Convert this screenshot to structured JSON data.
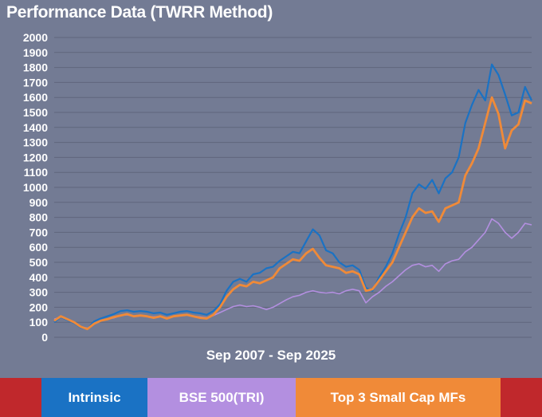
{
  "chart_data": {
    "type": "line",
    "title": "Performance Data (TWRR Method)",
    "xlabel": "Sep 2007 - Sep 2025",
    "ylabel": "",
    "ylim": [
      0,
      2000
    ],
    "yticks": [
      0,
      100,
      200,
      300,
      400,
      500,
      600,
      700,
      800,
      900,
      1000,
      1100,
      1200,
      1300,
      1400,
      1500,
      1600,
      1700,
      1800,
      1900,
      2000
    ],
    "x": [
      2007.75,
      2008.0,
      2008.25,
      2008.5,
      2008.75,
      2009.0,
      2009.25,
      2009.5,
      2009.75,
      2010.0,
      2010.25,
      2010.5,
      2010.75,
      2011.0,
      2011.25,
      2011.5,
      2011.75,
      2012.0,
      2012.25,
      2012.5,
      2012.75,
      2013.0,
      2013.25,
      2013.5,
      2013.75,
      2014.0,
      2014.25,
      2014.5,
      2014.75,
      2015.0,
      2015.25,
      2015.5,
      2015.75,
      2016.0,
      2016.25,
      2016.5,
      2016.75,
      2017.0,
      2017.25,
      2017.5,
      2017.75,
      2018.0,
      2018.25,
      2018.5,
      2018.75,
      2019.0,
      2019.25,
      2019.5,
      2019.75,
      2020.0,
      2020.25,
      2020.5,
      2020.75,
      2021.0,
      2021.25,
      2021.5,
      2021.75,
      2022.0,
      2022.25,
      2022.5,
      2022.75,
      2023.0,
      2023.25,
      2023.5,
      2023.75,
      2024.0,
      2024.25,
      2024.5,
      2024.75,
      2025.0,
      2025.25,
      2025.5,
      2025.75
    ],
    "series": [
      {
        "name": "Intrinsic",
        "color": "#1a72c4",
        "values": [
          100,
          135,
          115,
          95,
          65,
          55,
          105,
          125,
          140,
          155,
          175,
          180,
          170,
          175,
          170,
          160,
          165,
          150,
          160,
          170,
          175,
          165,
          160,
          150,
          175,
          220,
          310,
          370,
          390,
          370,
          420,
          430,
          460,
          470,
          510,
          540,
          570,
          560,
          640,
          720,
          680,
          580,
          560,
          500,
          470,
          480,
          450,
          330,
          310,
          400,
          470,
          560,
          690,
          800,
          960,
          1020,
          990,
          1050,
          960,
          1060,
          1100,
          1200,
          1430,
          1550,
          1650,
          1580,
          1820,
          1750,
          1620,
          1480,
          1500,
          1670,
          1580
        ]
      },
      {
        "name": "BSE 500(TRI)",
        "color": "#b38fe0",
        "values": [
          120,
          135,
          115,
          100,
          70,
          60,
          95,
          110,
          120,
          130,
          145,
          150,
          140,
          145,
          140,
          135,
          140,
          130,
          140,
          145,
          150,
          140,
          135,
          130,
          145,
          165,
          185,
          205,
          215,
          205,
          210,
          200,
          185,
          200,
          225,
          250,
          270,
          280,
          300,
          310,
          300,
          295,
          300,
          290,
          310,
          320,
          310,
          230,
          270,
          300,
          340,
          370,
          410,
          450,
          480,
          490,
          470,
          480,
          440,
          490,
          510,
          520,
          570,
          600,
          650,
          700,
          790,
          760,
          700,
          660,
          700,
          760,
          750
        ]
      },
      {
        "name": "Top 3 Small Cap MFs",
        "color": "#f08a38",
        "values": [
          110,
          140,
          120,
          100,
          70,
          55,
          90,
          110,
          120,
          135,
          145,
          155,
          140,
          145,
          140,
          130,
          140,
          125,
          140,
          145,
          150,
          140,
          130,
          125,
          150,
          200,
          270,
          320,
          350,
          340,
          370,
          360,
          380,
          400,
          460,
          490,
          520,
          510,
          560,
          590,
          530,
          480,
          470,
          460,
          430,
          440,
          420,
          310,
          320,
          380,
          440,
          500,
          600,
          700,
          800,
          860,
          830,
          840,
          770,
          860,
          880,
          900,
          1080,
          1160,
          1260,
          1430,
          1600,
          1490,
          1260,
          1380,
          1420,
          1580,
          1560
        ]
      }
    ]
  },
  "legend": {
    "labels": [
      "Intrinsic",
      "BSE 500(TRI)",
      "Top 3 Small Cap MFs"
    ],
    "colors": [
      "#1a72c4",
      "#b38fe0",
      "#f08a38"
    ],
    "edge_color": "#c0282c"
  },
  "colors": {
    "background": "#737b94",
    "grid": "#5f667c",
    "axis_text": "#ffffff"
  }
}
